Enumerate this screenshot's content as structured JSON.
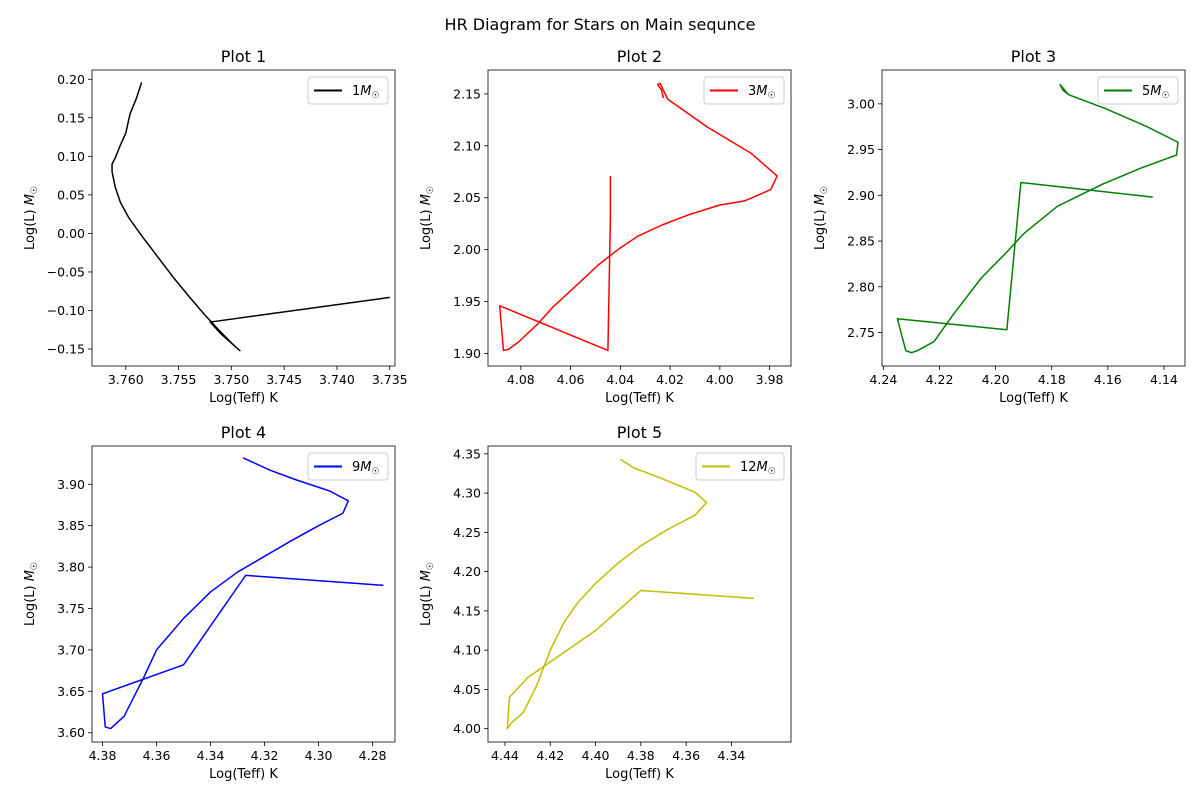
{
  "figure": {
    "suptitle": "HR Diagram for Stars on Main sequnce"
  },
  "chart_data": [
    {
      "type": "line",
      "title": "Plot 1",
      "xlabel": "Log(Teff) K",
      "ylabel": "Log(L) M☉",
      "xlim": [
        3.7632,
        3.7345
      ],
      "ylim": [
        -0.172,
        0.212
      ],
      "x_ticks": [
        "3.760",
        "3.755",
        "3.750",
        "3.745",
        "3.740",
        "3.735"
      ],
      "y_ticks": [
        "-0.15",
        "-0.10",
        "-0.05",
        "0.00",
        "0.05",
        "0.10",
        "0.15",
        "0.20"
      ],
      "legend": {
        "position": "top-right",
        "label": "1M☉"
      },
      "series": [
        {
          "name": "1M☉",
          "color": "#000000",
          "x": [
            3.7585,
            3.759,
            3.7596,
            3.76,
            3.7605,
            3.761,
            3.7613,
            3.7613,
            3.761,
            3.7605,
            3.7597,
            3.7585,
            3.757,
            3.7555,
            3.754,
            3.7525,
            3.751,
            3.75,
            3.7492,
            3.751,
            3.752,
            3.735
          ],
          "y": [
            0.196,
            0.175,
            0.155,
            0.13,
            0.115,
            0.098,
            0.09,
            0.08,
            0.06,
            0.04,
            0.02,
            -0.003,
            -0.03,
            -0.057,
            -0.082,
            -0.106,
            -0.128,
            -0.142,
            -0.152,
            -0.13,
            -0.115,
            -0.083
          ]
        }
      ]
    },
    {
      "type": "line",
      "title": "Plot 2",
      "xlabel": "Log(Teff) K",
      "ylabel": "Log(L) M☉",
      "xlim": [
        4.0932,
        3.9714
      ],
      "ylim": [
        1.888,
        2.173
      ],
      "x_ticks": [
        "4.08",
        "4.06",
        "4.04",
        "4.02",
        "4.00",
        "3.98"
      ],
      "y_ticks": [
        "1.90",
        "1.95",
        "2.00",
        "2.05",
        "2.10",
        "2.15"
      ],
      "legend": {
        "position": "top-right",
        "label": "3M☉"
      },
      "series": [
        {
          "name": "3M☉",
          "color": "#ff0000",
          "x": [
            4.0227,
            4.0235,
            4.025,
            4.024,
            4.021,
            4.005,
            3.9875,
            3.977,
            3.9795,
            3.986,
            3.99,
            4.0,
            4.012,
            4.023,
            4.033,
            4.041,
            4.049,
            4.057,
            4.067,
            4.073,
            4.081,
            4.085,
            4.087,
            4.0885,
            4.045,
            4.044,
            4.044
          ],
          "y": [
            2.146,
            2.154,
            2.159,
            2.16,
            2.145,
            2.118,
            2.093,
            2.071,
            2.058,
            2.051,
            2.047,
            2.043,
            2.034,
            2.024,
            2.013,
            2.0,
            1.985,
            1.967,
            1.945,
            1.929,
            1.911,
            1.904,
            1.903,
            1.946,
            1.903,
            2.03,
            2.071
          ]
        }
      ]
    },
    {
      "type": "line",
      "title": "Plot 3",
      "xlabel": "Log(Teff) K",
      "ylabel": "Log(L) M☉",
      "xlim": [
        4.2405,
        4.1325
      ],
      "ylim": [
        2.7134,
        3.037
      ],
      "x_ticks": [
        "4.24",
        "4.22",
        "4.20",
        "4.18",
        "4.16",
        "4.14"
      ],
      "y_ticks": [
        "2.75",
        "2.80",
        "2.85",
        "2.90",
        "2.95",
        "3.00"
      ],
      "legend": {
        "position": "top-right",
        "label": "5M☉"
      },
      "series": [
        {
          "name": "5M☉",
          "color": "#008000",
          "x": [
            4.174,
            4.176,
            4.177,
            4.174,
            4.161,
            4.146,
            4.135,
            4.1355,
            4.148,
            4.162,
            4.178,
            4.19,
            4.196,
            4.205,
            4.215,
            4.222,
            4.228,
            4.23,
            4.232,
            4.235,
            4.196,
            4.191,
            4.144
          ],
          "y": [
            3.01,
            3.015,
            3.021,
            3.01,
            2.995,
            2.975,
            2.958,
            2.944,
            2.93,
            2.912,
            2.888,
            2.858,
            2.838,
            2.81,
            2.77,
            2.74,
            2.73,
            2.728,
            2.73,
            2.765,
            2.753,
            2.914,
            2.898
          ]
        }
      ]
    },
    {
      "type": "line",
      "title": "Plot 4",
      "xlabel": "Log(Teff) K",
      "ylabel": "Log(L) M☉",
      "xlim": [
        4.3839,
        4.2717
      ],
      "ylim": [
        3.5888,
        3.9462
      ],
      "x_ticks": [
        "4.38",
        "4.36",
        "4.34",
        "4.32",
        "4.30",
        "4.28"
      ],
      "y_ticks": [
        "3.60",
        "3.65",
        "3.70",
        "3.75",
        "3.80",
        "3.85",
        "3.90"
      ],
      "legend": {
        "position": "top-right",
        "label": "9M☉"
      },
      "series": [
        {
          "name": "9M☉",
          "color": "#0000ff",
          "x": [
            4.328,
            4.318,
            4.308,
            4.296,
            4.289,
            4.291,
            4.3,
            4.31,
            4.32,
            4.33,
            4.34,
            4.35,
            4.36,
            4.365,
            4.372,
            4.377,
            4.379,
            4.38,
            4.35,
            4.327,
            4.276
          ],
          "y": [
            3.932,
            3.917,
            3.905,
            3.892,
            3.88,
            3.865,
            3.85,
            3.832,
            3.813,
            3.794,
            3.77,
            3.738,
            3.7,
            3.665,
            3.62,
            3.605,
            3.607,
            3.647,
            3.682,
            3.79,
            3.778
          ]
        }
      ]
    },
    {
      "type": "line",
      "title": "Plot 5",
      "xlabel": "Log(Teff) K",
      "ylabel": "Log(L) M☉",
      "xlim": [
        4.4475,
        4.3137
      ],
      "ylim": [
        3.983,
        4.36
      ],
      "x_ticks": [
        "4.44",
        "4.42",
        "4.40",
        "4.38",
        "4.36",
        "4.34"
      ],
      "y_ticks": [
        "4.00",
        "4.05",
        "4.10",
        "4.15",
        "4.20",
        "4.25",
        "4.30",
        "4.35"
      ],
      "legend": {
        "position": "top-right",
        "label": "12M☉"
      },
      "series": [
        {
          "name": "12M☉",
          "color": "#bfbf00",
          "x": [
            4.389,
            4.383,
            4.372,
            4.356,
            4.351,
            4.356,
            4.368,
            4.38,
            4.39,
            4.4,
            4.408,
            4.414,
            4.42,
            4.426,
            4.432,
            4.437,
            4.439,
            4.438,
            4.43,
            4.4,
            4.38,
            4.33
          ],
          "y": [
            4.343,
            4.332,
            4.32,
            4.301,
            4.288,
            4.272,
            4.254,
            4.233,
            4.211,
            4.185,
            4.16,
            4.135,
            4.1,
            4.055,
            4.02,
            4.008,
            4.0,
            4.04,
            4.065,
            4.125,
            4.176,
            4.166
          ]
        }
      ]
    }
  ]
}
